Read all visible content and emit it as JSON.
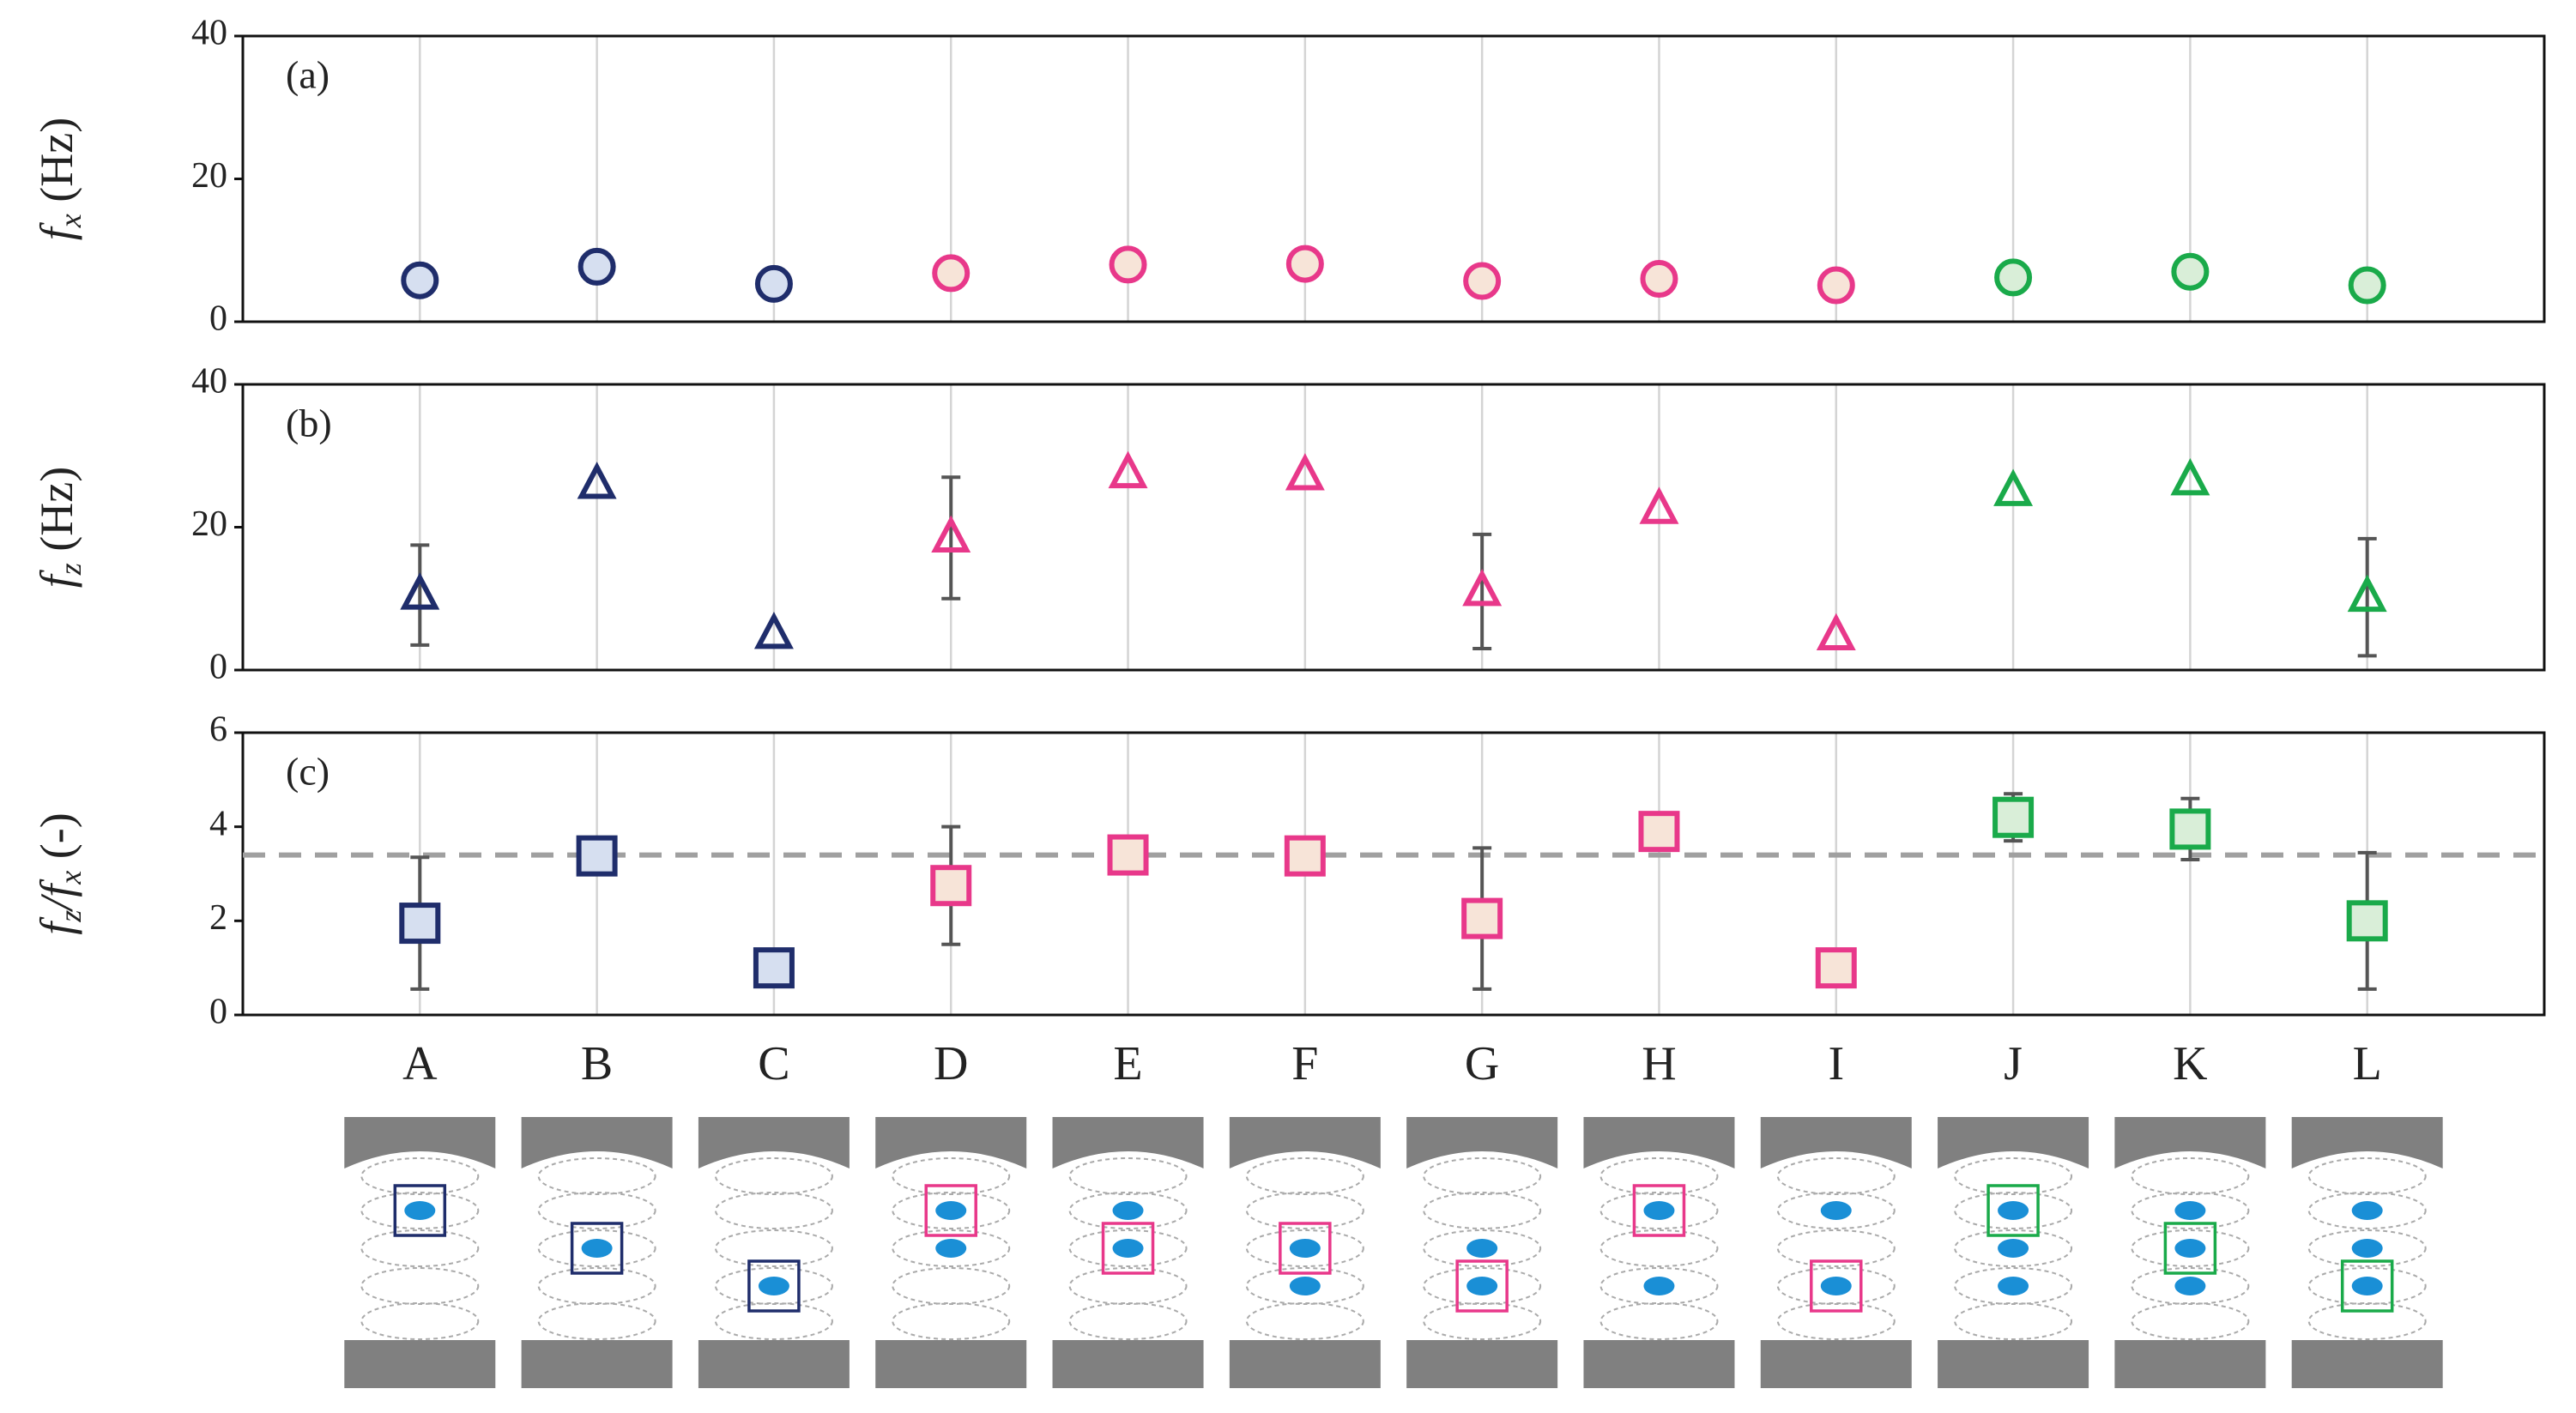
{
  "chart_data": [
    {
      "type": "scatter",
      "marker": "circle",
      "annotation": "(a)",
      "ylabel": [
        {
          "text": "f",
          "italic": true
        },
        {
          "text": "x",
          "italic": true,
          "sub": true
        },
        {
          "text": " (Hz)"
        }
      ],
      "values": [
        5.8,
        7.7,
        5.3,
        6.8,
        8.0,
        8.1,
        5.7,
        6.0,
        5.1,
        6.2,
        7.0,
        5.1
      ],
      "errors": [
        null,
        null,
        null,
        null,
        null,
        null,
        null,
        null,
        null,
        null,
        null,
        null
      ],
      "colors": [
        "#1f2d6b",
        "#1f2d6b",
        "#1f2d6b",
        "#e8388a",
        "#e8388a",
        "#e8388a",
        "#e8388a",
        "#e8388a",
        "#e8388a",
        "#1aaa4a",
        "#1aaa4a",
        "#1aaa4a"
      ],
      "fills": [
        "#d6dff0",
        "#d6dff0",
        "#d6dff0",
        "#f7e4d8",
        "#f7e4d8",
        "#f7e4d8",
        "#f7e4d8",
        "#f7e4d8",
        "#f7e4d8",
        "#d9eed8",
        "#d9eed8",
        "#d9eed8"
      ],
      "ylim": [
        0,
        40
      ],
      "yticks": [
        0,
        20,
        40
      ],
      "grid": true
    },
    {
      "type": "scatter",
      "marker": "triangle",
      "annotation": "(b)",
      "ylabel": [
        {
          "text": "f",
          "italic": true
        },
        {
          "text": "z",
          "italic": true,
          "sub": true
        },
        {
          "text": " (Hz)"
        }
      ],
      "values": [
        10.5,
        26.0,
        5.0,
        18.5,
        27.5,
        27.2,
        11.0,
        22.5,
        4.8,
        25.0,
        26.5,
        10.2
      ],
      "errors": [
        7.0,
        null,
        null,
        8.5,
        null,
        null,
        8.0,
        null,
        null,
        null,
        null,
        8.2
      ],
      "colors": [
        "#1f2d6b",
        "#1f2d6b",
        "#1f2d6b",
        "#e8388a",
        "#e8388a",
        "#e8388a",
        "#e8388a",
        "#e8388a",
        "#e8388a",
        "#1aaa4a",
        "#1aaa4a",
        "#1aaa4a"
      ],
      "fills": [
        "none",
        "none",
        "none",
        "none",
        "none",
        "none",
        "none",
        "none",
        "none",
        "none",
        "none",
        "none"
      ],
      "ylim": [
        0,
        40
      ],
      "yticks": [
        0,
        20,
        40
      ],
      "grid": true
    },
    {
      "type": "scatter",
      "marker": "square",
      "annotation": "(c)",
      "ylabel": [
        {
          "text": "f",
          "italic": true
        },
        {
          "text": "z",
          "italic": true,
          "sub": true
        },
        {
          "text": "/",
          "italic": true
        },
        {
          "text": "f",
          "italic": true
        },
        {
          "text": "x",
          "italic": true,
          "sub": true
        },
        {
          "text": " (-)"
        }
      ],
      "categories": [
        "A",
        "B",
        "C",
        "D",
        "E",
        "F",
        "G",
        "H",
        "I",
        "J",
        "K",
        "L"
      ],
      "values": [
        1.95,
        3.38,
        1.0,
        2.75,
        3.4,
        3.38,
        2.05,
        3.9,
        1.0,
        4.2,
        3.95,
        2.0
      ],
      "errors": [
        1.4,
        null,
        null,
        1.25,
        null,
        null,
        1.5,
        null,
        null,
        0.5,
        0.65,
        1.45
      ],
      "colors": [
        "#1f2d6b",
        "#1f2d6b",
        "#1f2d6b",
        "#e8388a",
        "#e8388a",
        "#e8388a",
        "#e8388a",
        "#e8388a",
        "#e8388a",
        "#1aaa4a",
        "#1aaa4a",
        "#1aaa4a"
      ],
      "fills": [
        "#d6dff0",
        "#d6dff0",
        "#d6dff0",
        "#f7e4d8",
        "#f7e4d8",
        "#f7e4d8",
        "#f7e4d8",
        "#f7e4d8",
        "#f7e4d8",
        "#d9eed8",
        "#d9eed8",
        "#d9eed8"
      ],
      "hline": 3.4,
      "ylim": [
        0,
        6
      ],
      "yticks": [
        0,
        2,
        4,
        6
      ],
      "grid": true
    }
  ]
}
